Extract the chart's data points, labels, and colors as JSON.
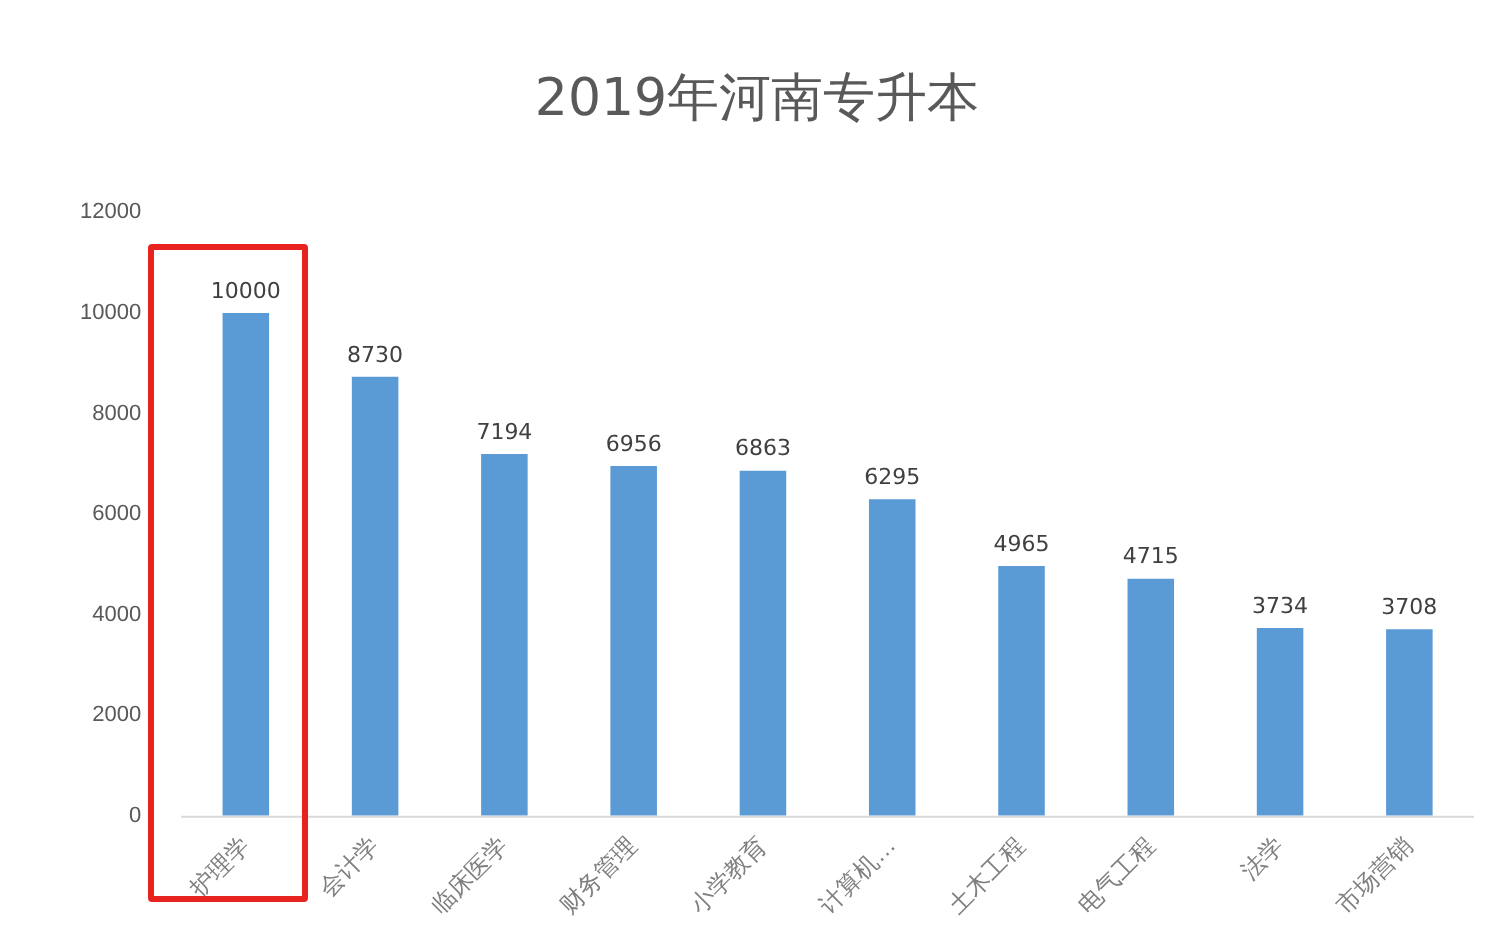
{
  "chart_data": {
    "type": "bar",
    "title": "2019年河南专升本",
    "categories": [
      "护理学",
      "会计学",
      "临床医学",
      "财务管理",
      "小学教育",
      "计算机…",
      "土木工程",
      "电气工程",
      "法学",
      "市场营销"
    ],
    "values": [
      10000,
      8730,
      7194,
      6956,
      6863,
      6295,
      4965,
      4715,
      3734,
      3708
    ],
    "color": "#5b9bd5",
    "ylim": [
      0,
      12000
    ],
    "yticks": [
      0,
      2000,
      4000,
      6000,
      8000,
      10000,
      12000
    ],
    "grid": false,
    "data_labels": true
  }
}
